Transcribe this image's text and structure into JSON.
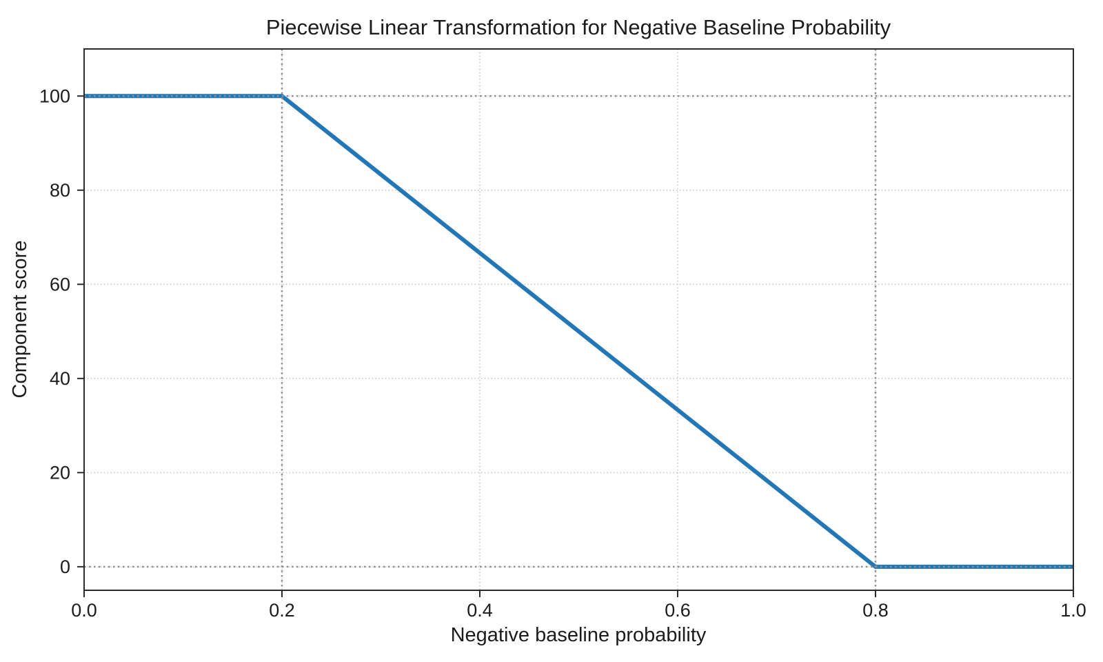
{
  "chart_data": {
    "type": "line",
    "title": "Piecewise Linear Transformation for Negative Baseline Probability",
    "xlabel": "Negative baseline probability",
    "ylabel": "Component score",
    "x": [
      0.0,
      0.2,
      0.8,
      1.0
    ],
    "y": [
      100,
      100,
      0,
      0
    ],
    "breakpoints": [
      [
        0.2,
        100
      ],
      [
        0.8,
        0
      ]
    ],
    "xlim": [
      0.0,
      1.0
    ],
    "ylim": [
      -5,
      110
    ],
    "xticks": [
      0.0,
      0.2,
      0.4,
      0.6,
      0.8,
      1.0
    ],
    "yticks": [
      0,
      20,
      40,
      60,
      80,
      100
    ],
    "xtick_labels": [
      "0.0",
      "0.2",
      "0.4",
      "0.6",
      "0.8",
      "1.0"
    ],
    "ytick_labels": [
      "0",
      "20",
      "40",
      "60",
      "80",
      "100"
    ],
    "grid": true,
    "legend": false,
    "reference_lines": {
      "x": [
        0.2,
        0.8
      ],
      "y": [
        0,
        100
      ]
    },
    "colors": {
      "line": "#2277b6",
      "grid": "#c9c9c9",
      "reference": "#909090",
      "spine": "#2a2a2a",
      "text": "#1c1c1c"
    },
    "line_width": 6
  }
}
